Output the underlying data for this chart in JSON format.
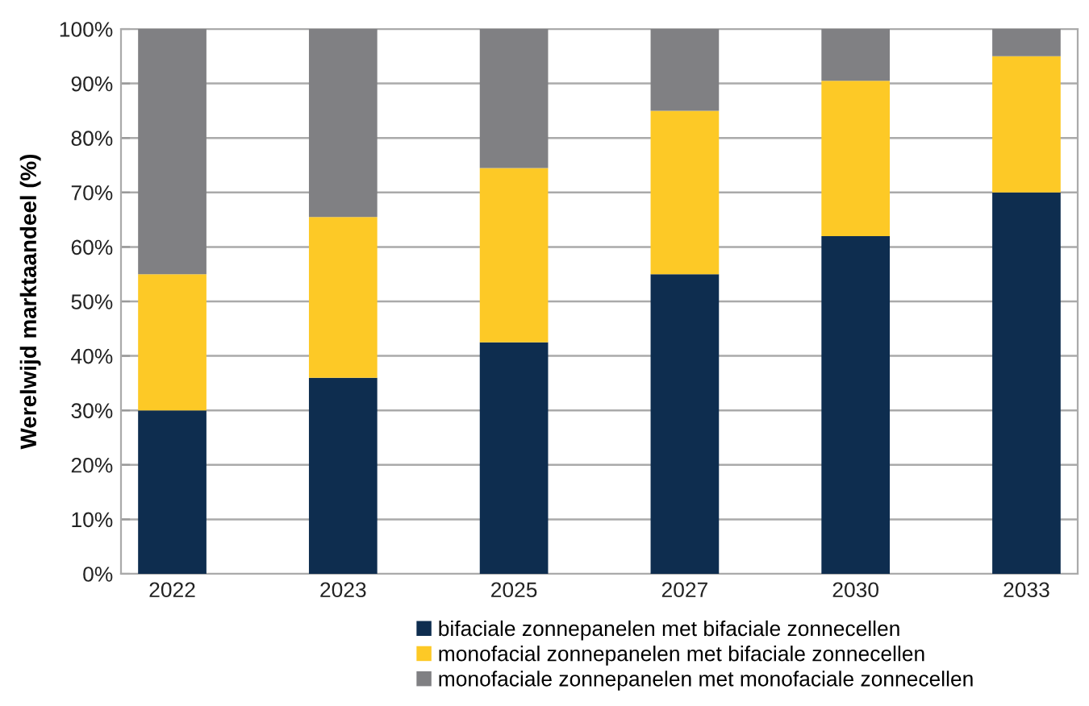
{
  "chart_data": {
    "type": "bar",
    "stacked": true,
    "ylabel": "Werelwijd marktaandeel (%)",
    "categories": [
      "2022",
      "2023",
      "2025",
      "2027",
      "2030",
      "2033"
    ],
    "series": [
      {
        "name": "bifaciale zonnepanelen met bifaciale zonnecellen",
        "color": "#0e2d4f",
        "values": [
          30,
          36,
          42.5,
          55,
          62,
          70
        ]
      },
      {
        "name": "monofacial zonnepanelen met bifaciale zonnecellen",
        "color": "#fdc926",
        "values": [
          25,
          29.5,
          32,
          30,
          28.5,
          25
        ]
      },
      {
        "name": "monofaciale zonnepanelen met monofaciale zonnecellen",
        "color": "#808083",
        "values": [
          45,
          34.5,
          25.5,
          15,
          9.5,
          5
        ]
      }
    ],
    "ylim": [
      0,
      100
    ],
    "yticks": [
      {
        "value": 0,
        "label": "0%"
      },
      {
        "value": 10,
        "label": "10%"
      },
      {
        "value": 20,
        "label": "20%"
      },
      {
        "value": 30,
        "label": "30%"
      },
      {
        "value": 40,
        "label": "40%"
      },
      {
        "value": 50,
        "label": "50%"
      },
      {
        "value": 60,
        "label": "60%"
      },
      {
        "value": 70,
        "label": "70%"
      },
      {
        "value": 80,
        "label": "80%"
      },
      {
        "value": 90,
        "label": "90%"
      },
      {
        "value": 100,
        "label": "100%"
      }
    ],
    "grid": "y",
    "legend": "bottom"
  }
}
